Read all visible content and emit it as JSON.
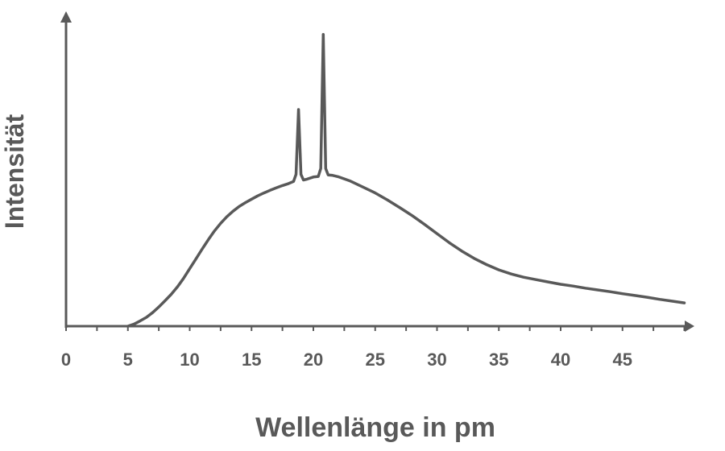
{
  "chart_data": {
    "type": "line",
    "title": "",
    "xlabel": "Wellenlänge in pm",
    "ylabel": "Intensität",
    "xlim": [
      0,
      50
    ],
    "ylim": [
      0,
      100
    ],
    "x_ticks": [
      0,
      5,
      10,
      15,
      20,
      25,
      30,
      35,
      40,
      45
    ],
    "x_minor_step": 2.5,
    "grid": false,
    "y_tick_labels": false,
    "colors": {
      "axis": "#595959",
      "line": "#595959"
    },
    "series": [
      {
        "points": [
          [
            5.0,
            0.0
          ],
          [
            5.5,
            0.7
          ],
          [
            6.0,
            1.8
          ],
          [
            6.5,
            3.0
          ],
          [
            7.0,
            4.6
          ],
          [
            7.5,
            6.5
          ],
          [
            8.0,
            8.6
          ],
          [
            8.5,
            10.8
          ],
          [
            9.0,
            13.3
          ],
          [
            9.5,
            16.2
          ],
          [
            10.0,
            19.5
          ],
          [
            10.5,
            22.8
          ],
          [
            11.0,
            26.1
          ],
          [
            11.5,
            29.3
          ],
          [
            12.0,
            32.3
          ],
          [
            12.5,
            34.9
          ],
          [
            13.0,
            37.1
          ],
          [
            13.5,
            39.0
          ],
          [
            14.0,
            40.6
          ],
          [
            14.5,
            41.9
          ],
          [
            15.0,
            43.1
          ],
          [
            15.5,
            44.2
          ],
          [
            16.0,
            45.2
          ],
          [
            16.5,
            46.1
          ],
          [
            17.0,
            46.9
          ],
          [
            17.5,
            47.7
          ],
          [
            18.0,
            48.4
          ],
          [
            18.4,
            49.1
          ],
          [
            18.6,
            51.5
          ],
          [
            18.8,
            73.5
          ],
          [
            19.0,
            51.5
          ],
          [
            19.2,
            49.6
          ],
          [
            19.5,
            49.9
          ],
          [
            20.0,
            50.6
          ],
          [
            20.4,
            50.8
          ],
          [
            20.6,
            53.5
          ],
          [
            20.8,
            99.0
          ],
          [
            21.0,
            53.5
          ],
          [
            21.2,
            51.3
          ],
          [
            21.5,
            51.2
          ],
          [
            22.0,
            50.7
          ],
          [
            23.0,
            49.2
          ],
          [
            24.0,
            47.2
          ],
          [
            25.0,
            45.2
          ],
          [
            26.0,
            42.8
          ],
          [
            27.0,
            40.2
          ],
          [
            28.0,
            37.5
          ],
          [
            29.0,
            34.5
          ],
          [
            30.0,
            31.4
          ],
          [
            31.0,
            28.3
          ],
          [
            32.0,
            25.5
          ],
          [
            33.0,
            23.0
          ],
          [
            34.0,
            20.9
          ],
          [
            35.0,
            19.1
          ],
          [
            36.0,
            17.7
          ],
          [
            37.0,
            16.6
          ],
          [
            38.0,
            15.8
          ],
          [
            39.0,
            15.0
          ],
          [
            40.0,
            14.2
          ],
          [
            41.0,
            13.6
          ],
          [
            42.0,
            12.9
          ],
          [
            43.0,
            12.3
          ],
          [
            44.0,
            11.7
          ],
          [
            45.0,
            11.0
          ],
          [
            46.0,
            10.4
          ],
          [
            47.0,
            9.8
          ],
          [
            48.0,
            9.1
          ],
          [
            49.0,
            8.5
          ],
          [
            50.0,
            7.9
          ]
        ]
      }
    ]
  }
}
